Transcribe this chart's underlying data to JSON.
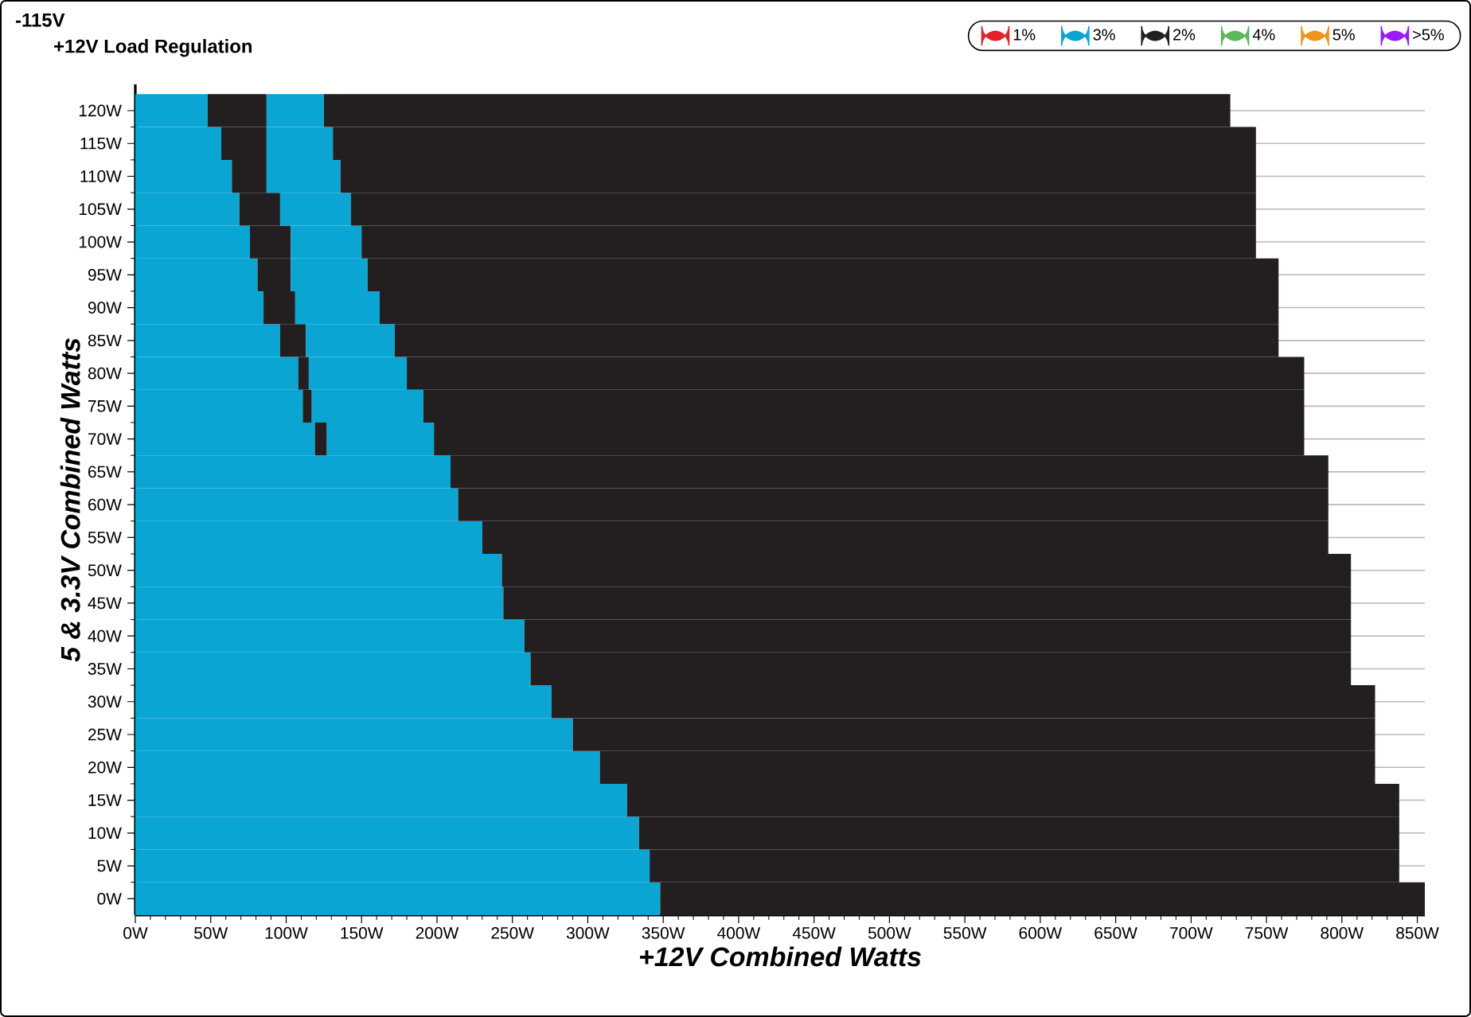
{
  "chart_data": {
    "type": "bar",
    "orientation": "horizontal",
    "stacked": true,
    "title": "-115V",
    "subtitle": "+12V Load Regulation",
    "xlabel": "+12V Combined Watts",
    "ylabel": "5 & 3.3V Combined Watts",
    "categories": [
      "120W",
      "115W",
      "110W",
      "105W",
      "100W",
      "95W",
      "90W",
      "85W",
      "80W",
      "75W",
      "70W",
      "65W",
      "60W",
      "55W",
      "50W",
      "45W",
      "40W",
      "35W",
      "30W",
      "25W",
      "20W",
      "15W",
      "10W",
      "5W",
      "0W"
    ],
    "series": [
      {
        "name": "1%",
        "color": "#e3222b",
        "values": [
          null,
          null,
          null,
          null,
          null,
          null,
          null,
          null,
          null,
          null,
          null,
          null,
          null,
          null,
          null,
          null,
          null,
          null,
          null,
          null,
          null,
          null,
          null,
          null,
          null
        ]
      },
      {
        "name": "3%",
        "color": "#0ba5d3",
        "values": [
          48,
          57,
          64,
          69,
          76,
          81,
          85,
          96,
          108,
          111,
          119,
          209,
          214,
          230,
          243,
          244,
          258,
          262,
          276,
          290,
          308,
          326,
          334,
          341,
          348
        ]
      },
      {
        "name": "2%",
        "color": "#231f20",
        "values": [
          39,
          30,
          23,
          27,
          27,
          22,
          21,
          17,
          7,
          6,
          8,
          582,
          577,
          561,
          563,
          562,
          548,
          544,
          546,
          532,
          514,
          512,
          504,
          497,
          507
        ]
      },
      {
        "color": "#0ba5d3",
        "values": [
          38,
          44,
          49,
          47,
          47,
          51,
          56,
          59,
          65,
          74,
          71,
          null,
          null,
          null,
          null,
          null,
          null,
          null,
          null,
          null,
          null,
          null,
          null,
          null,
          null
        ]
      },
      {
        "color": "#231f20",
        "values": [
          601,
          612,
          607,
          600,
          593,
          604,
          596,
          586,
          595,
          584,
          577,
          null,
          null,
          null,
          null,
          null,
          null,
          null,
          null,
          null,
          null,
          null,
          null,
          null,
          null
        ]
      },
      {
        "name": "4%",
        "color": "#5cb85c",
        "values": [
          null,
          null,
          null,
          null,
          null,
          null,
          null,
          null,
          null,
          null,
          null,
          null,
          null,
          null,
          null,
          null,
          null,
          null,
          null,
          null,
          null,
          null,
          null,
          null,
          null
        ]
      },
      {
        "name": "5%",
        "color": "#f0931e",
        "values": [
          null,
          null,
          null,
          null,
          null,
          null,
          null,
          null,
          null,
          null,
          null,
          null,
          null,
          null,
          null,
          null,
          null,
          null,
          null,
          null,
          null,
          null,
          null,
          null,
          null
        ]
      },
      {
        "name": ">5%",
        "color": "#9b1aff",
        "values": [
          null,
          null,
          null,
          null,
          null,
          null,
          null,
          null,
          null,
          null,
          null,
          null,
          null,
          null,
          null,
          null,
          null,
          null,
          null,
          null,
          null,
          null,
          null,
          null,
          null
        ]
      }
    ],
    "xlim": [
      0,
      855
    ],
    "xticks": [
      {
        "value": 0,
        "label": "0W"
      },
      {
        "value": 50,
        "label": "50W"
      },
      {
        "value": 100,
        "label": "100W"
      },
      {
        "value": 150,
        "label": "150W"
      },
      {
        "value": 200,
        "label": "200W"
      },
      {
        "value": 250,
        "label": "250W"
      },
      {
        "value": 300,
        "label": "300W"
      },
      {
        "value": 350,
        "label": "350W"
      },
      {
        "value": 400,
        "label": "400W"
      },
      {
        "value": 450,
        "label": "450W"
      },
      {
        "value": 500,
        "label": "500W"
      },
      {
        "value": 550,
        "label": "550W"
      },
      {
        "value": 600,
        "label": "600W"
      },
      {
        "value": 650,
        "label": "650W"
      },
      {
        "value": 700,
        "label": "700W"
      },
      {
        "value": 750,
        "label": "750W"
      },
      {
        "value": 800,
        "label": "800W"
      },
      {
        "value": 850,
        "label": "850W"
      }
    ],
    "grid": "y",
    "legend": "top right"
  }
}
